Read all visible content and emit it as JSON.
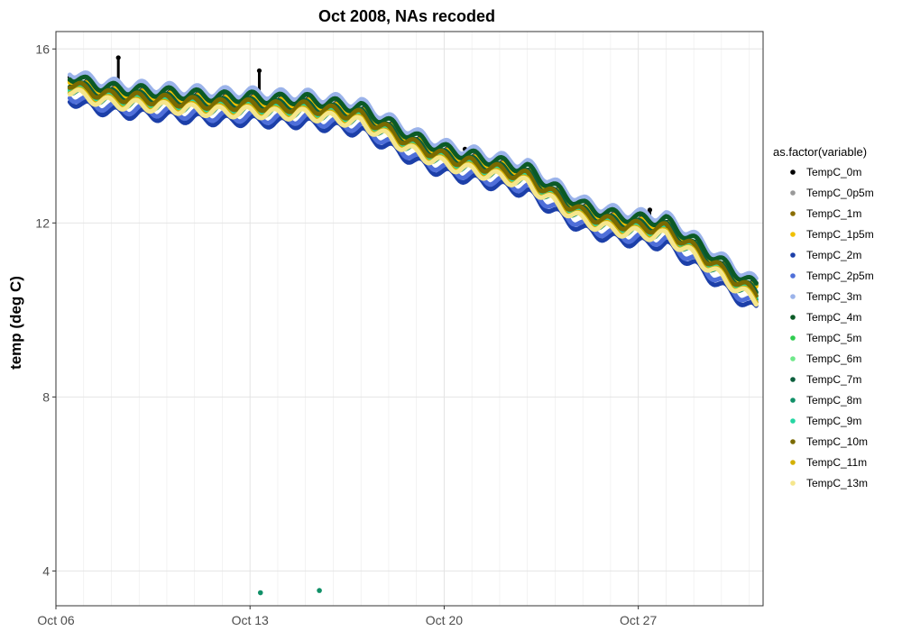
{
  "chart_data": {
    "type": "scatter",
    "title": "Oct 2008, NAs recoded",
    "xlabel": "",
    "ylabel": "temp (deg C)",
    "xlim": [
      "2008-10-06",
      "2008-10-31T12:00"
    ],
    "ylim": [
      3.2,
      16.4
    ],
    "x_ticks": [
      "2008-10-06",
      "2008-10-13",
      "2008-10-20",
      "2008-10-27"
    ],
    "x_tick_labels": [
      "Oct 06",
      "Oct 13",
      "Oct 20",
      "Oct 27"
    ],
    "y_ticks": [
      4,
      8,
      12,
      16
    ],
    "y_tick_labels": [
      "4",
      "8",
      "12",
      "16"
    ],
    "grid": true,
    "legend": {
      "title": "as.factor(variable)",
      "position": "right"
    },
    "profile": {
      "x": [
        "2008-10-06T12:00",
        "2008-10-07",
        "2008-10-08",
        "2008-10-09",
        "2008-10-10",
        "2008-10-11",
        "2008-10-12",
        "2008-10-13",
        "2008-10-14",
        "2008-10-15",
        "2008-10-16",
        "2008-10-17",
        "2008-10-18",
        "2008-10-19",
        "2008-10-20",
        "2008-10-21",
        "2008-10-22",
        "2008-10-23",
        "2008-10-24",
        "2008-10-25",
        "2008-10-26",
        "2008-10-27",
        "2008-10-28",
        "2008-10-29",
        "2008-10-30",
        "2008-10-31",
        "2008-10-31T06:00"
      ],
      "y": [
        15.2,
        15.05,
        14.9,
        14.85,
        14.8,
        14.75,
        14.7,
        14.7,
        14.65,
        14.65,
        14.55,
        14.45,
        14.1,
        13.75,
        13.5,
        13.35,
        13.2,
        13.05,
        12.6,
        12.2,
        12.0,
        11.9,
        11.85,
        11.4,
        10.9,
        10.45,
        10.35
      ],
      "wave_amplitude": 0.12
    },
    "series": [
      {
        "name": "TempC_0m",
        "color": "#000000",
        "offset": 0.15,
        "spikes": [
          {
            "x": "2008-10-08T06:00",
            "y": 15.8
          },
          {
            "x": "2008-10-13T08:00",
            "y": 15.5
          },
          {
            "x": "2008-10-20T18:00",
            "y": 13.7
          },
          {
            "x": "2008-10-24T08:00",
            "y": 12.45
          },
          {
            "x": "2008-10-27T10:00",
            "y": 12.3
          }
        ]
      },
      {
        "name": "TempC_0p5m",
        "color": "#999999",
        "offset": 0.12
      },
      {
        "name": "TempC_1m",
        "color": "#8a6d00",
        "offset": 0.1
      },
      {
        "name": "TempC_1p5m",
        "color": "#f0c000",
        "offset": 0.08
      },
      {
        "name": "TempC_2m",
        "color": "#1c3fa8",
        "offset": -0.35
      },
      {
        "name": "TempC_2p5m",
        "color": "#4f6fd9",
        "offset": -0.25
      },
      {
        "name": "TempC_3m",
        "color": "#9bb3ea",
        "offset": 0.3
      },
      {
        "name": "TempC_4m",
        "color": "#0b5a26",
        "offset": 0.2
      },
      {
        "name": "TempC_5m",
        "color": "#2ecc4f",
        "offset": 0.0
      },
      {
        "name": "TempC_6m",
        "color": "#6fe88a",
        "offset": -0.05
      },
      {
        "name": "TempC_7m",
        "color": "#0c5e3c",
        "offset": 0.05
      },
      {
        "name": "TempC_8m",
        "color": "#119068",
        "offset": -0.1,
        "outliers": [
          {
            "x": "2008-10-13T09:00",
            "y": 3.5
          },
          {
            "x": "2008-10-15T12:00",
            "y": 3.55
          }
        ]
      },
      {
        "name": "TempC_9m",
        "color": "#25d6a3",
        "offset": -0.02
      },
      {
        "name": "TempC_10m",
        "color": "#7a6a00",
        "offset": 0.02
      },
      {
        "name": "TempC_11m",
        "color": "#d4b000",
        "offset": -0.12
      },
      {
        "name": "TempC_13m",
        "color": "#f5e68c",
        "offset": -0.15
      }
    ]
  }
}
